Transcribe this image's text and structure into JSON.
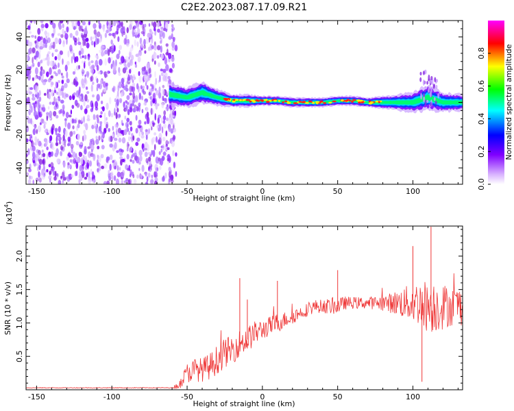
{
  "title": "C2E2.2023.087.17.09.R21",
  "colors": {
    "snr_line": "#ee3333",
    "noise": "#8a2be2",
    "axis": "#000000"
  },
  "chart_data": [
    {
      "type": "heatmap",
      "xlabel": "Height of straight line (km)",
      "ylabel": "Frequency (Hz)",
      "xlim": [
        -157,
        133
      ],
      "ylim": [
        -50,
        50
      ],
      "x_ticks": [
        -150,
        -100,
        -50,
        0,
        50,
        100
      ],
      "y_ticks": [
        -40,
        -20,
        0,
        20,
        40
      ],
      "colorbar": {
        "label": "Normalized spectral amplitude",
        "range": [
          0.0,
          1.0
        ],
        "ticks": [
          0.0,
          0.2,
          0.4,
          0.6,
          0.8
        ],
        "tick_labels": [
          "0.0",
          "0.2",
          "0.4",
          "0.6",
          "0.8"
        ],
        "colormap": [
          "#ffffff",
          "#d9b3ff",
          "#8000ff",
          "#0000ff",
          "#00ffff",
          "#00ff00",
          "#ffff00",
          "#ff0000",
          "#ff00ff"
        ]
      },
      "noise_region": {
        "x_from": -157,
        "x_to": -60
      },
      "signal_band": {
        "x": [
          -62,
          -50,
          -40,
          -30,
          -20,
          -10,
          0,
          10,
          20,
          30,
          40,
          50,
          60,
          70,
          80,
          90,
          100,
          110,
          120,
          133
        ],
        "center_hz": [
          5,
          3,
          6,
          3,
          1,
          1,
          1,
          1,
          0,
          0,
          0,
          1,
          1,
          0,
          0,
          0,
          0,
          3,
          0,
          0
        ],
        "half_width_hz": [
          7,
          6,
          7,
          5,
          4,
          4,
          3,
          3,
          3,
          3,
          3,
          3,
          3,
          3,
          4,
          5,
          6,
          8,
          6,
          5
        ]
      }
    },
    {
      "type": "line",
      "xlabel": "Height of straight line (km)",
      "ylabel": "SNR (10 * v/v)",
      "y_multiplier_label": "(x10",
      "y_multiplier_exp": "4",
      "xlim": [
        -157,
        133
      ],
      "ylim": [
        0,
        24500
      ],
      "x_ticks": [
        -150,
        -100,
        -50,
        0,
        50,
        100
      ],
      "y_ticks": [
        5000,
        10000,
        15000,
        20000
      ],
      "y_tick_labels": [
        "0.5",
        "1.0",
        "1.5",
        "2.0"
      ],
      "series": [
        {
          "x": [
            -157,
            -120,
            -80,
            -60,
            -55,
            -50,
            -45,
            -40,
            -35,
            -30,
            -25,
            -20,
            -15,
            -10,
            -5,
            0,
            5,
            10,
            15,
            20,
            25,
            30,
            35,
            40,
            45,
            50,
            55,
            60,
            65,
            70,
            75,
            80,
            85,
            90,
            95,
            100,
            105,
            110,
            115,
            120,
            125,
            133
          ],
          "y": [
            300,
            300,
            300,
            300,
            800,
            2500,
            3000,
            3000,
            3500,
            4500,
            5500,
            6000,
            7000,
            7500,
            8500,
            9000,
            9500,
            10000,
            10500,
            11000,
            11500,
            12000,
            12500,
            12500,
            12500,
            12500,
            13000,
            13000,
            13000,
            13000,
            13000,
            13000,
            13000,
            13000,
            13000,
            13000,
            13000,
            12500,
            12500,
            12500,
            12500,
            12500
          ],
          "noise_amp": [
            50,
            50,
            50,
            50,
            700,
            1500,
            1800,
            1800,
            2000,
            2200,
            2200,
            2200,
            2000,
            2000,
            1800,
            1500,
            1500,
            1500,
            1200,
            1200,
            1000,
            1000,
            1000,
            1000,
            1200,
            1200,
            1000,
            900,
            900,
            900,
            1000,
            1200,
            1500,
            2000,
            2500,
            3000,
            3500,
            4000,
            4000,
            3500,
            3000,
            3000
          ]
        }
      ],
      "spikes": [
        {
          "x": -15,
          "y": 16700
        },
        {
          "x": -10,
          "y": 13500
        },
        {
          "x": 10,
          "y": 16300
        },
        {
          "x": 50,
          "y": 17900
        },
        {
          "x": 100,
          "y": 21500
        },
        {
          "x": 112,
          "y": 24400
        },
        {
          "x": 106,
          "y": 1200
        }
      ]
    }
  ]
}
